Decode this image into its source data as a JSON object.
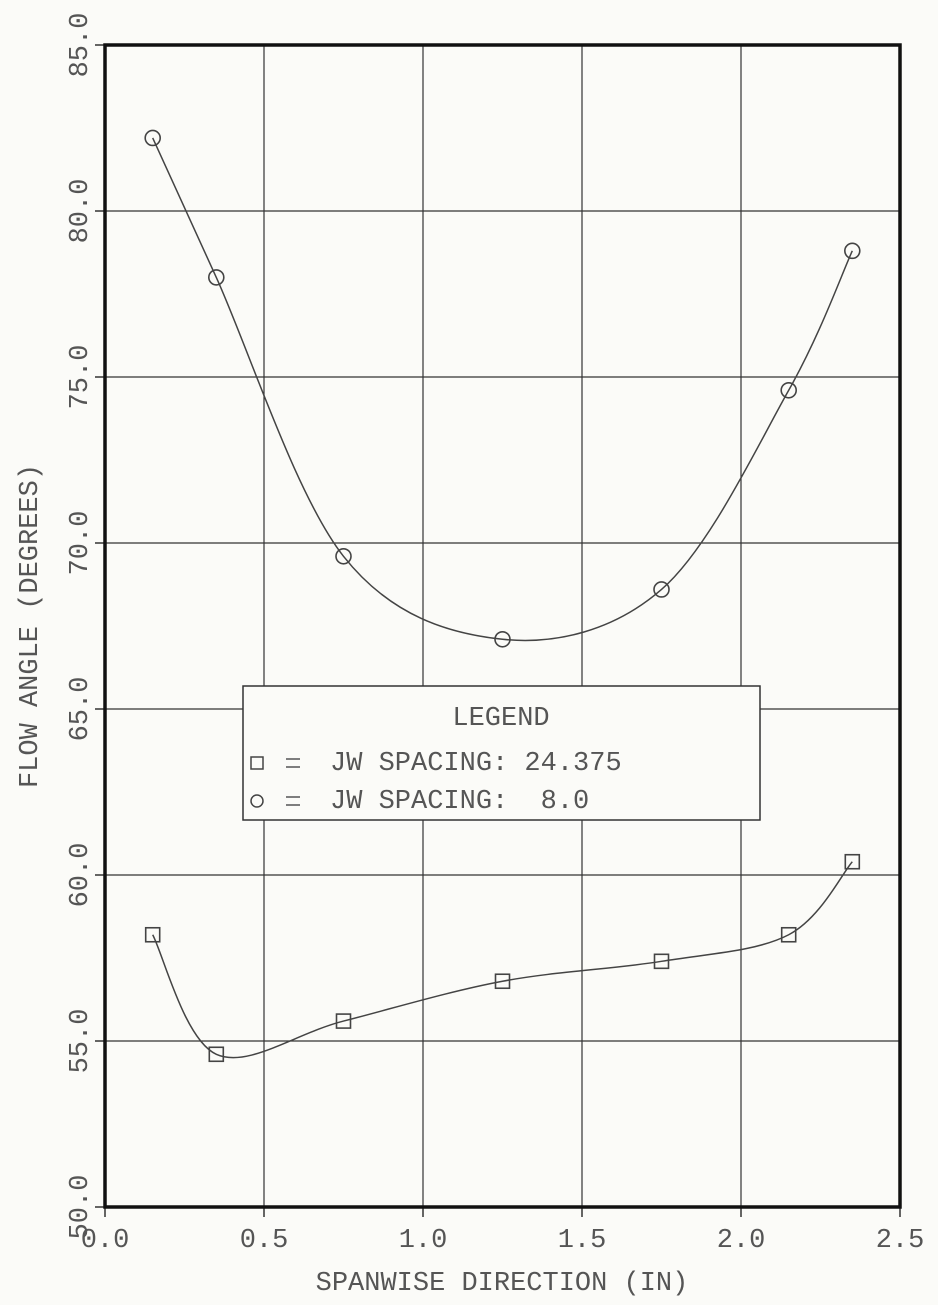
{
  "chart_data": {
    "type": "line",
    "xlabel": "SPANWISE DIRECTION (IN)",
    "ylabel": "FLOW ANGLE (DEGREES)",
    "legend_title": "LEGEND",
    "x": [
      0.15,
      0.35,
      0.75,
      1.25,
      1.75,
      2.15,
      2.35
    ],
    "series": [
      {
        "name": "JW SPACING: 24.375",
        "marker": "square",
        "color": "#444",
        "values": [
          58.2,
          54.6,
          55.6,
          56.8,
          57.4,
          58.2,
          60.4
        ]
      },
      {
        "name": "JW SPACING:  8.0",
        "marker": "circle",
        "color": "#444",
        "values": [
          82.2,
          78.0,
          69.6,
          67.1,
          68.6,
          74.6,
          78.8
        ]
      }
    ],
    "xlim": [
      0,
      2.5
    ],
    "ylim": [
      50,
      85
    ],
    "xticks": [
      {
        "value": 0,
        "label": "0.0"
      },
      0.5,
      {
        "value": 1,
        "label": "1.0"
      },
      1.5,
      {
        "value": 2,
        "label": "2.0"
      },
      2.5
    ],
    "yticks": [
      {
        "value": 50,
        "label": "50.0"
      },
      {
        "value": 55,
        "label": "55.0"
      },
      {
        "value": 60,
        "label": "60.0"
      },
      {
        "value": 65,
        "label": "65.0"
      },
      {
        "value": 70,
        "label": "70.0"
      },
      {
        "value": 75,
        "label": "75.0"
      },
      {
        "value": 80,
        "label": "80.0"
      },
      {
        "value": 85,
        "label": "85.0"
      }
    ],
    "grid": true,
    "smooth": true
  }
}
